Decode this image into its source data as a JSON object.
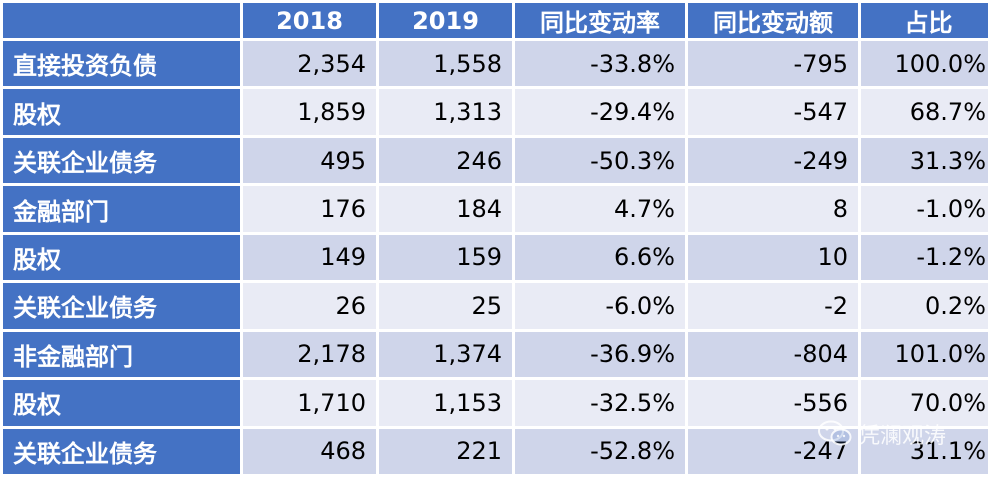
{
  "header": {
    "corner": "",
    "columns": [
      "2018",
      "2019",
      "同比变动率",
      "同比变动额",
      "占比"
    ]
  },
  "rows": [
    {
      "label": "直接投资负债",
      "cells": [
        "2,354",
        "1,558",
        "-33.8%",
        "-795",
        "100.0%"
      ]
    },
    {
      "label": "股权",
      "cells": [
        "1,859",
        "1,313",
        "-29.4%",
        "-547",
        "68.7%"
      ]
    },
    {
      "label": "关联企业债务",
      "cells": [
        "495",
        "246",
        "-50.3%",
        "-249",
        "31.3%"
      ]
    },
    {
      "label": "金融部门",
      "cells": [
        "176",
        "184",
        "4.7%",
        "8",
        "-1.0%"
      ]
    },
    {
      "label": "股权",
      "cells": [
        "149",
        "159",
        "6.6%",
        "10",
        "-1.2%"
      ]
    },
    {
      "label": "关联企业债务",
      "cells": [
        "26",
        "25",
        "-6.0%",
        "-2",
        "0.2%"
      ]
    },
    {
      "label": "非金融部门",
      "cells": [
        "2,178",
        "1,374",
        "-36.9%",
        "-804",
        "101.0%"
      ]
    },
    {
      "label": "股权",
      "cells": [
        "1,710",
        "1,153",
        "-32.5%",
        "-556",
        "70.0%"
      ]
    },
    {
      "label": "关联企业债务",
      "cells": [
        "468",
        "221",
        "-52.8%",
        "-247",
        "31.1%"
      ]
    }
  ],
  "watermark": {
    "icon": "wechat-icon",
    "text": "凭澜观涛"
  },
  "colors": {
    "header_bg": "#4472c4",
    "row_odd": "#cfd5ea",
    "row_even": "#e9ebf5"
  }
}
